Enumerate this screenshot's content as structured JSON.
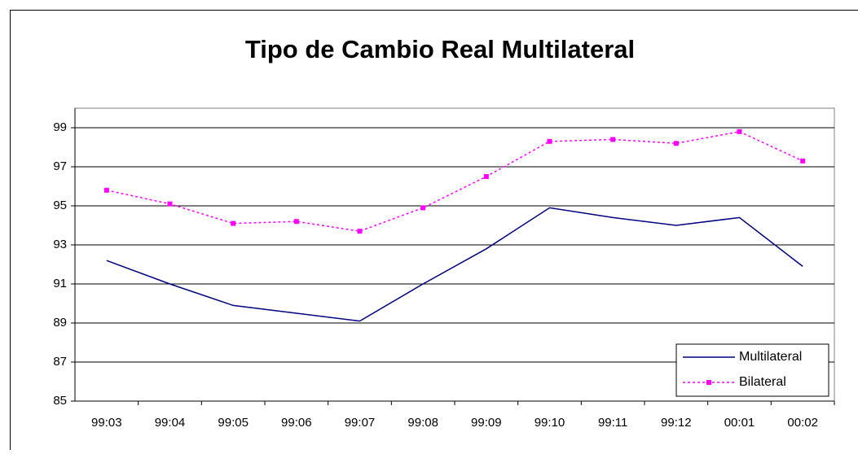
{
  "chart_data": {
    "type": "line",
    "title": "Tipo de Cambio Real Multilateral",
    "categories": [
      "99:03",
      "99:04",
      "99:05",
      "99:06",
      "99:07",
      "99:08",
      "99:09",
      "99:10",
      "99:11",
      "99:12",
      "00:01",
      "00:02"
    ],
    "series": [
      {
        "name": "Multilateral",
        "color": "#000080",
        "dashed": false,
        "markers": false,
        "values": [
          92.2,
          91.0,
          89.9,
          89.5,
          89.1,
          91.0,
          92.8,
          94.9,
          94.4,
          94.0,
          94.4,
          91.9
        ]
      },
      {
        "name": "Bilateral",
        "color": "#ff00ff",
        "dashed": true,
        "markers": true,
        "values": [
          95.8,
          95.1,
          94.1,
          94.2,
          93.7,
          94.9,
          96.5,
          98.3,
          98.4,
          98.2,
          98.8,
          97.3
        ]
      }
    ],
    "ylim": [
      85,
      100
    ],
    "yticks": [
      85,
      87,
      89,
      91,
      93,
      95,
      97,
      99
    ],
    "grid": true,
    "legend": "bottom-right"
  }
}
